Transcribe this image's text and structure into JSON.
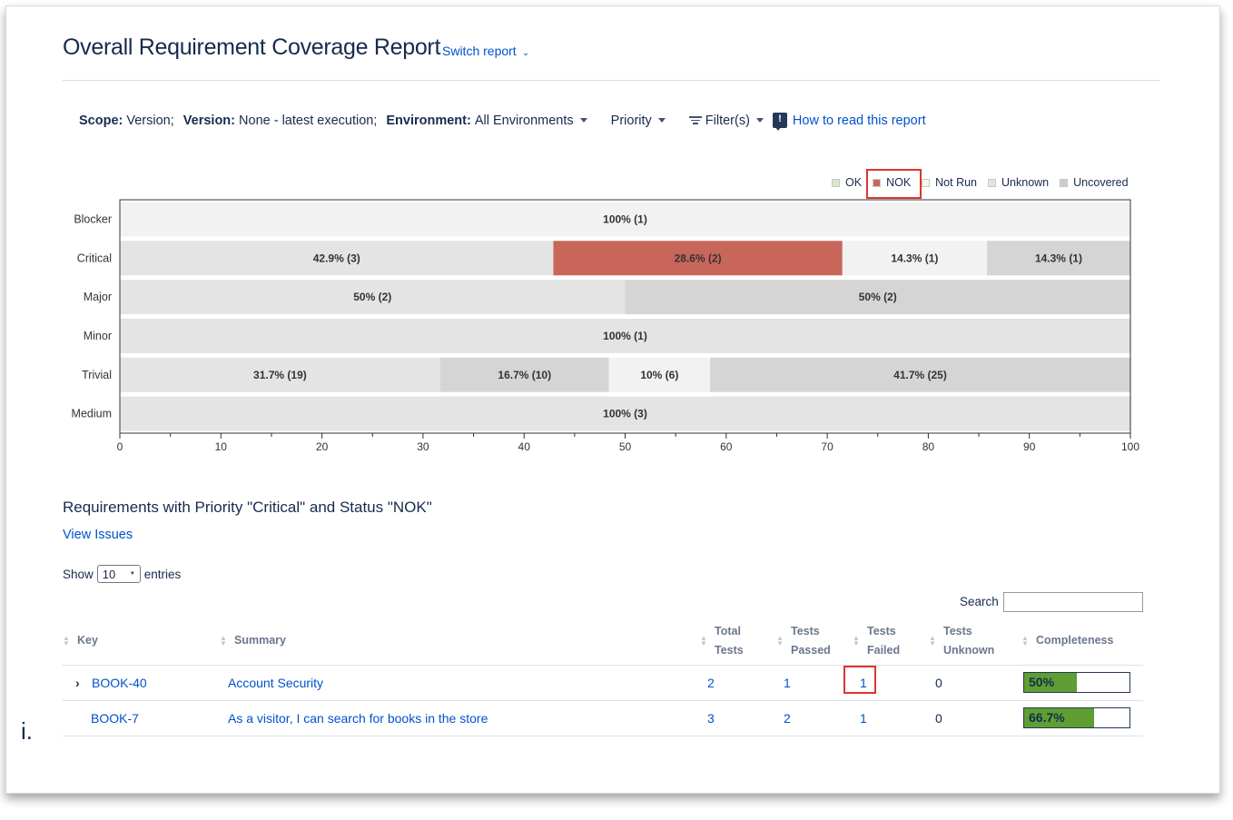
{
  "header": {
    "title": "Overall Requirement Coverage Report",
    "switch_report": "Switch report"
  },
  "scope": {
    "scope_label": "Scope:",
    "scope_value": "Version;",
    "version_label": "Version:",
    "version_value": "None - latest execution;",
    "environment_label": "Environment:",
    "environment_value": "All Environments",
    "priority": "Priority",
    "filters": "Filter(s)",
    "how_to": "How to read this report"
  },
  "legend": [
    {
      "label": "OK",
      "color": "#d7e8c9"
    },
    {
      "label": "NOK",
      "color": "#c9665a"
    },
    {
      "label": "Not Run",
      "color": "#f7f7e8"
    },
    {
      "label": "Unknown",
      "color": "#e4e4e4"
    },
    {
      "label": "Uncovered",
      "color": "#c8cdd4"
    }
  ],
  "colors": {
    "ok": "#e4e4e4",
    "nok": "#c9665a",
    "not_run": "#f2f2f2",
    "unknown": "#d5d5d5",
    "uncovered": "#e4e4e4",
    "link": "#0052cc",
    "highlight": "#e0342f",
    "progress": "#5e9e32"
  },
  "chart_data": {
    "type": "bar",
    "orientation": "horizontal-stacked",
    "xlim": [
      0,
      100
    ],
    "xticks": [
      0,
      10,
      20,
      30,
      40,
      50,
      60,
      70,
      80,
      90,
      100
    ],
    "categories": [
      "Blocker",
      "Critical",
      "Major",
      "Minor",
      "Trivial",
      "Medium"
    ],
    "rows": [
      {
        "category": "Blocker",
        "segments": [
          {
            "value": 100,
            "label": "100% (1)",
            "fill": "#f2f2f2"
          }
        ]
      },
      {
        "category": "Critical",
        "segments": [
          {
            "value": 42.9,
            "label": "42.9% (3)",
            "fill": "#e4e4e4"
          },
          {
            "value": 28.6,
            "label": "28.6% (2)",
            "fill": "#c9665a"
          },
          {
            "value": 14.3,
            "label": "14.3% (1)",
            "fill": "#f2f2f2"
          },
          {
            "value": 14.3,
            "label": "14.3% (1)",
            "fill": "#d5d5d5"
          }
        ]
      },
      {
        "category": "Major",
        "segments": [
          {
            "value": 50,
            "label": "50% (2)",
            "fill": "#e4e4e4"
          },
          {
            "value": 50,
            "label": "50% (2)",
            "fill": "#d5d5d5"
          }
        ]
      },
      {
        "category": "Minor",
        "segments": [
          {
            "value": 100,
            "label": "100% (1)",
            "fill": "#e4e4e4"
          }
        ]
      },
      {
        "category": "Trivial",
        "segments": [
          {
            "value": 31.7,
            "label": "31.7% (19)",
            "fill": "#e4e4e4"
          },
          {
            "value": 16.7,
            "label": "16.7% (10)",
            "fill": "#d5d5d5"
          },
          {
            "value": 10,
            "label": "10% (6)",
            "fill": "#f2f2f2"
          },
          {
            "value": 41.7,
            "label": "41.7% (25)",
            "fill": "#d5d5d5"
          }
        ]
      },
      {
        "category": "Medium",
        "segments": [
          {
            "value": 100,
            "label": "100% (3)",
            "fill": "#e4e4e4"
          }
        ]
      }
    ]
  },
  "requirements": {
    "title": "Requirements with Priority \"Critical\" and Status \"NOK\"",
    "view_issues": "View Issues",
    "show_label": "Show",
    "show_value": "10",
    "entries_label": "entries",
    "search_label": "Search",
    "search_value": "",
    "columns": {
      "key": "Key",
      "summary": "Summary",
      "total_1": "Total",
      "total_2": "Tests",
      "passed_1": "Tests",
      "passed_2": "Passed",
      "failed_1": "Tests",
      "failed_2": "Failed",
      "unknown_1": "Tests",
      "unknown_2": "Unknown",
      "completeness": "Completeness"
    },
    "rows": [
      {
        "expander": "›",
        "key": "BOOK-40",
        "summary": "Account Security",
        "total": "2",
        "passed": "1",
        "failed": "1",
        "unknown": "0",
        "completeness": "50%",
        "completeness_value": 50
      },
      {
        "expander": "",
        "key": "BOOK-7",
        "summary": "As a visitor, I can search for books in the store",
        "total": "3",
        "passed": "2",
        "failed": "1",
        "unknown": "0",
        "completeness": "66.7%",
        "completeness_value": 66.7
      }
    ]
  },
  "stray_char": "i."
}
